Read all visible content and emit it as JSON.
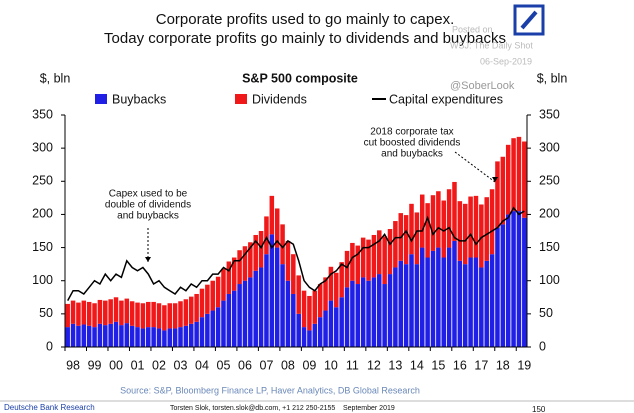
{
  "chart_data": {
    "type": "stacked_bar_line",
    "title": [
      "Corporate profits used to go mainly to capex.",
      "Today corporate profits go mainly to dividends and buybacks"
    ],
    "subtitle": "S&P 500 composite",
    "watermark": [
      "Posted on",
      "WSJ: The Daily Shot",
      "06-Sep-2019"
    ],
    "handle": "@SoberLook",
    "y_label": "$, bln",
    "y2_label": "$, bln",
    "categories": [
      "98",
      null,
      null,
      null,
      "99",
      null,
      null,
      null,
      "00",
      null,
      null,
      null,
      "01",
      null,
      null,
      null,
      "02",
      null,
      null,
      null,
      "03",
      null,
      null,
      null,
      "04",
      null,
      null,
      null,
      "05",
      null,
      null,
      null,
      "06",
      null,
      null,
      null,
      "07",
      null,
      null,
      null,
      "08",
      null,
      null,
      null,
      "09",
      null,
      null,
      null,
      "10",
      null,
      null,
      null,
      "11",
      null,
      null,
      null,
      "12",
      null,
      null,
      null,
      "13",
      null,
      null,
      null,
      "14",
      null,
      null,
      null,
      "15",
      null,
      null,
      null,
      "16",
      null,
      null,
      null,
      "17",
      null,
      null,
      null,
      "18",
      null,
      null,
      null,
      "19",
      null
    ],
    "series": [
      {
        "name": "Buybacks",
        "color": "#1f1fe6",
        "kind": "bar",
        "values": [
          30,
          35,
          32,
          34,
          32,
          30,
          35,
          33,
          35,
          38,
          33,
          36,
          32,
          30,
          28,
          30,
          30,
          28,
          25,
          28,
          28,
          30,
          32,
          35,
          38,
          45,
          50,
          55,
          60,
          70,
          80,
          85,
          95,
          100,
          105,
          115,
          120,
          140,
          170,
          150,
          125,
          100,
          80,
          50,
          30,
          25,
          35,
          45,
          55,
          70,
          60,
          75,
          90,
          100,
          95,
          105,
          100,
          105,
          110,
          95,
          110,
          120,
          130,
          125,
          140,
          125,
          150,
          135,
          145,
          150,
          135,
          150,
          160,
          130,
          125,
          135,
          135,
          120,
          130,
          140,
          180,
          185,
          200,
          205,
          205,
          195
        ]
      },
      {
        "name": "Dividends",
        "color": "#f01818",
        "kind": "bar",
        "values": [
          35,
          35,
          35,
          36,
          36,
          36,
          36,
          37,
          37,
          37,
          37,
          37,
          37,
          37,
          38,
          38,
          38,
          38,
          38,
          38,
          38,
          39,
          40,
          41,
          42,
          43,
          44,
          45,
          46,
          48,
          49,
          50,
          51,
          52,
          53,
          54,
          55,
          57,
          58,
          59,
          60,
          60,
          60,
          58,
          55,
          52,
          50,
          50,
          50,
          51,
          52,
          53,
          55,
          57,
          58,
          60,
          62,
          64,
          66,
          72,
          68,
          70,
          72,
          74,
          76,
          78,
          80,
          82,
          84,
          85,
          86,
          88,
          89,
          90,
          91,
          92,
          93,
          95,
          96,
          98,
          100,
          102,
          105,
          110,
          112,
          115
        ]
      },
      {
        "name": "Capital expenditures",
        "color": "#000000",
        "kind": "line",
        "values": [
          70,
          85,
          85,
          80,
          90,
          100,
          95,
          110,
          100,
          110,
          105,
          130,
          120,
          115,
          120,
          110,
          95,
          100,
          90,
          85,
          80,
          90,
          85,
          95,
          90,
          100,
          100,
          110,
          110,
          120,
          115,
          130,
          130,
          140,
          150,
          160,
          150,
          165,
          150,
          160,
          150,
          160,
          155,
          130,
          100,
          90,
          85,
          95,
          100,
          110,
          115,
          125,
          120,
          135,
          140,
          150,
          150,
          155,
          160,
          170,
          155,
          165,
          165,
          175,
          160,
          175,
          175,
          195,
          170,
          180,
          175,
          180,
          165,
          160,
          160,
          170,
          155,
          165,
          170,
          175,
          180,
          190,
          195,
          210,
          200,
          205
        ]
      }
    ],
    "ylim": [
      0,
      350
    ],
    "yticks": [
      0,
      50,
      100,
      150,
      200,
      250,
      300,
      350
    ],
    "y2lim": [
      0,
      350
    ],
    "y2ticks": [
      0,
      50,
      100,
      150,
      200,
      250,
      300,
      350
    ],
    "annotations": [
      {
        "text": [
          "Capex used to be",
          "double of dividends",
          "and buybacks"
        ]
      },
      {
        "text": [
          "2018 corporate tax",
          "cut boosted dividends",
          "and buybacks"
        ]
      }
    ],
    "source": "Source: S&P, Bloomberg Finance LP, Haver Analytics, DB Global Research",
    "footer": [
      "Deutsche Bank Research",
      "Torsten Slok, torsten.slok@db.com, +1 212 250-2155",
      "September 2019",
      "150"
    ]
  }
}
